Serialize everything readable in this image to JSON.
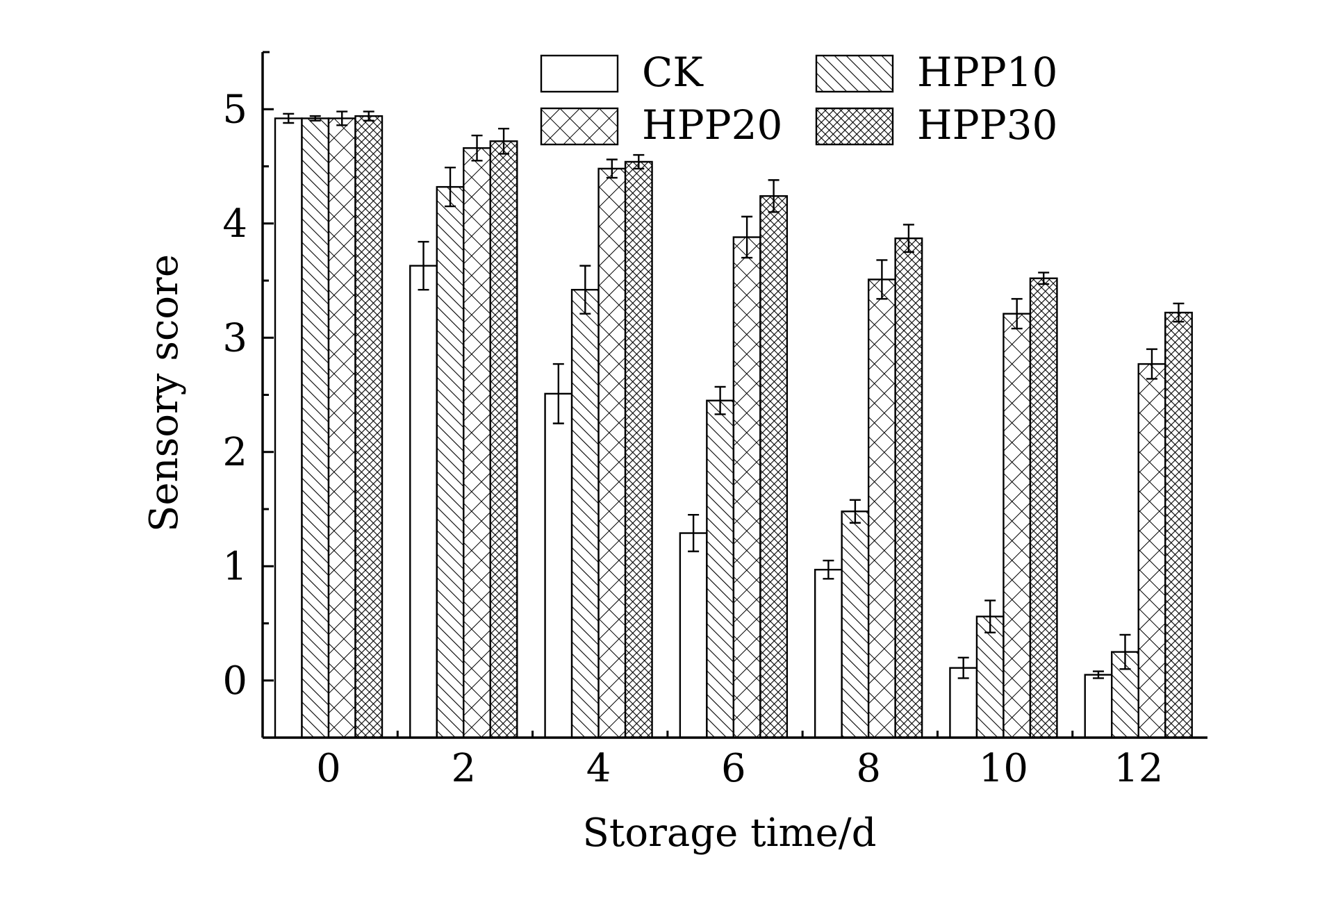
{
  "chart_data": {
    "type": "bar",
    "xlabel": "Storage time/d",
    "ylabel": "Sensory score",
    "ylim": [
      -0.5,
      5.5
    ],
    "yticks": [
      0,
      1,
      2,
      3,
      4,
      5
    ],
    "categories": [
      "0",
      "2",
      "4",
      "6",
      "8",
      "10",
      "12"
    ],
    "grid": false,
    "legend_position": "top",
    "series": [
      {
        "name": "CK",
        "pattern": "none",
        "values": [
          4.92,
          3.63,
          2.51,
          1.29,
          0.97,
          0.11,
          0.05
        ],
        "errors": [
          0.04,
          0.21,
          0.26,
          0.16,
          0.08,
          0.09,
          0.03
        ]
      },
      {
        "name": "HPP10",
        "pattern": "diagonal",
        "values": [
          4.92,
          4.32,
          3.42,
          2.45,
          1.48,
          0.56,
          0.25
        ],
        "errors": [
          0.02,
          0.17,
          0.21,
          0.12,
          0.1,
          0.14,
          0.15
        ]
      },
      {
        "name": "HPP20",
        "pattern": "crosshatch",
        "values": [
          4.92,
          4.66,
          4.48,
          3.88,
          3.51,
          3.21,
          2.77
        ],
        "errors": [
          0.06,
          0.11,
          0.08,
          0.18,
          0.17,
          0.13,
          0.13
        ]
      },
      {
        "name": "HPP30",
        "pattern": "dense-crosshatch",
        "values": [
          4.94,
          4.72,
          4.54,
          4.24,
          3.87,
          3.52,
          3.22
        ],
        "errors": [
          0.04,
          0.11,
          0.06,
          0.14,
          0.12,
          0.05,
          0.08
        ]
      }
    ],
    "colors": {
      "stroke": "#000000",
      "fill": "#ffffff"
    }
  }
}
